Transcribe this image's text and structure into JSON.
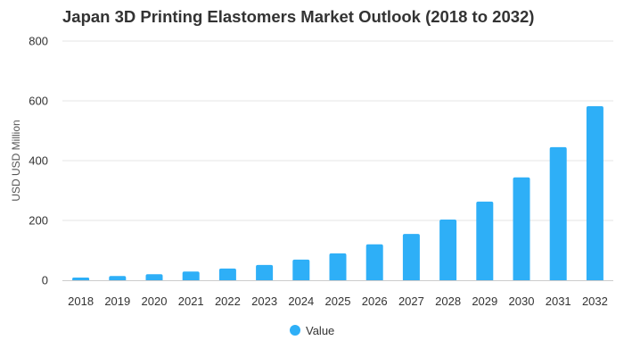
{
  "chart_data": {
    "type": "bar",
    "title": "Japan 3D Printing Elastomers Market Outlook (2018 to 2032)",
    "xlabel": "",
    "ylabel": "USD USD Million",
    "ylim": [
      0,
      800
    ],
    "yticks": [
      "0",
      "200",
      "400",
      "600",
      "800"
    ],
    "grid": true,
    "legend_position": "bottom-center",
    "categories": [
      "2018",
      "2019",
      "2020",
      "2021",
      "2022",
      "2023",
      "2024",
      "2025",
      "2026",
      "2027",
      "2028",
      "2029",
      "2030",
      "2031",
      "2032"
    ],
    "series": [
      {
        "name": "Value",
        "color": "#2eaff7",
        "values": [
          9,
          14,
          20,
          29,
          39,
          51,
          69,
          90,
          120,
          155,
          203,
          263,
          344,
          445,
          582
        ]
      }
    ]
  }
}
